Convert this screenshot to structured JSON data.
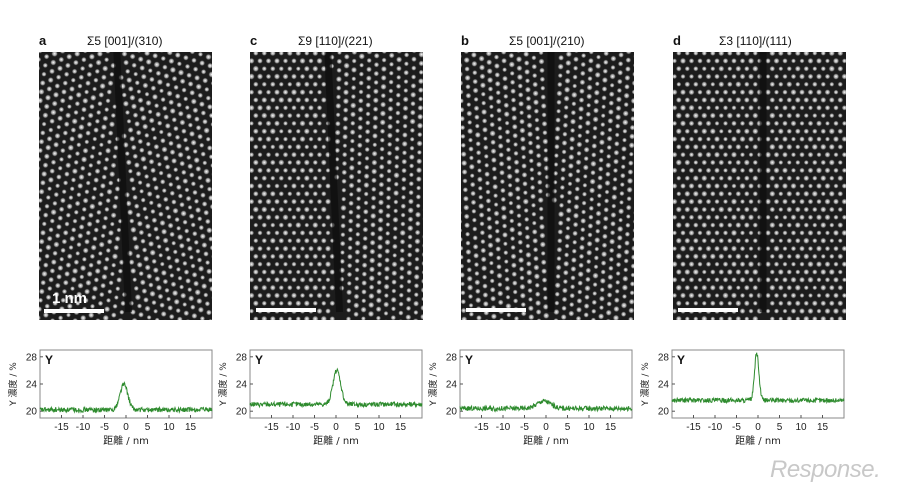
{
  "panels": [
    {
      "letter": "a",
      "title": "Σ5 [001]/(310)",
      "scale_label": "1 nm",
      "seed": 11,
      "angleA": -0.35,
      "angleB": 0.32,
      "gb": "V",
      "chart_data": {
        "type": "line",
        "element_label": "Y",
        "xlabel": "距離 / nm",
        "ylabel": "Y 濃度 / %",
        "xlim": [
          -20,
          20
        ],
        "ylim": [
          19,
          29
        ],
        "yticks": [
          20,
          24,
          28
        ],
        "xticks": [
          -15,
          -10,
          -5,
          0,
          5,
          10,
          15
        ],
        "baseline": 20.2,
        "peak": {
          "x": -0.5,
          "height": 24.0,
          "width": 0.9
        },
        "color": "#2e8b2e"
      }
    },
    {
      "letter": "c",
      "title": "Σ9 [110]/(221)",
      "scale_label": "",
      "seed": 23,
      "angleA": 0.0,
      "angleB": 0.52,
      "gb": "V",
      "chart_data": {
        "type": "line",
        "element_label": "Y",
        "xlabel": "距離 / nm",
        "ylabel": "Y 濃度 / %",
        "xlim": [
          -20,
          20
        ],
        "ylim": [
          19,
          29
        ],
        "yticks": [
          20,
          24,
          28
        ],
        "xticks": [
          -15,
          -10,
          -5,
          0,
          5,
          10,
          15
        ],
        "baseline": 21.0,
        "peak": {
          "x": 0.2,
          "height": 26.0,
          "width": 0.9
        },
        "color": "#2e8b2e"
      }
    },
    {
      "letter": "b",
      "title": "Σ5 [001]/(210)",
      "scale_label": "",
      "seed": 37,
      "angleA": 0.45,
      "angleB": -0.45,
      "gb": "straight",
      "chart_data": {
        "type": "line",
        "element_label": "Y",
        "xlabel": "距離 / nm",
        "ylabel": "Y 濃度 / %",
        "xlim": [
          -20,
          20
        ],
        "ylim": [
          19,
          29
        ],
        "yticks": [
          20,
          24,
          28
        ],
        "xticks": [
          -15,
          -10,
          -5,
          0,
          5,
          10,
          15
        ],
        "baseline": 20.4,
        "peak": {
          "x": -0.5,
          "height": 21.5,
          "width": 1.6
        },
        "color": "#2e8b2e"
      }
    },
    {
      "letter": "d",
      "title": "Σ3 [110]/(111)",
      "scale_label": "",
      "seed": 51,
      "angleA": 0.0,
      "angleB": 0.0,
      "gb": "straight",
      "chart_data": {
        "type": "line",
        "element_label": "Y",
        "xlabel": "距離 / nm",
        "ylabel": "Y 濃度 / %",
        "xlim": [
          -20,
          20
        ],
        "ylim": [
          19,
          29
        ],
        "yticks": [
          20,
          24,
          28
        ],
        "xticks": [
          -15,
          -10,
          -5,
          0,
          5,
          10,
          15
        ],
        "baseline": 21.6,
        "peak": {
          "x": -0.3,
          "height": 28.5,
          "width": 0.5
        },
        "color": "#2e8b2e"
      }
    }
  ],
  "watermark": "Response."
}
